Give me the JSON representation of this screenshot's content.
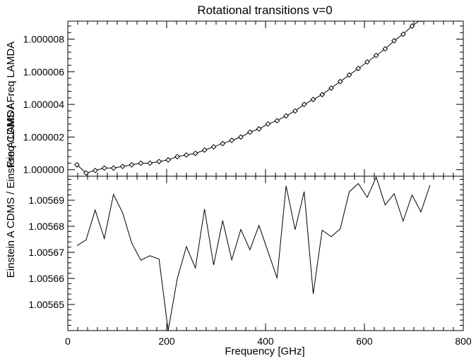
{
  "chart_data": {
    "title": "Rotational transitions v=0",
    "xlabel": "Frequency [GHz]",
    "ylabel_top": "Freq CDMS / Freq LAMDA",
    "ylabel_bottom": "Einstein A CDMS / Einstein A LAMDA",
    "xlim": [
      0,
      800
    ],
    "x_ticks": [
      0,
      200,
      400,
      600,
      800
    ],
    "x_tick_labels": [
      "0",
      "200",
      "400",
      "600",
      "800"
    ],
    "panels": [
      {
        "name": "top",
        "type": "line",
        "markers": "diamond",
        "ylim": [
          0.9999996,
          1.0000091
        ],
        "y_ticks": [
          1.0,
          1.000002,
          1.000004,
          1.000006,
          1.000008
        ],
        "y_tick_labels": [
          "1.000000",
          "1.000002",
          "1.000004",
          "1.000006",
          "1.000008"
        ],
        "series": [
          {
            "x": [
              18.5,
              37.0,
              55.5,
              73.9,
              92.4,
              110.8,
              129.3,
              147.7,
              166.2,
              184.6,
              203.0,
              221.4,
              239.8,
              258.2,
              276.6,
              295.0,
              313.3,
              331.7,
              350.0,
              368.4,
              386.7,
              405.0,
              423.3,
              441.6,
              459.9,
              478.1,
              496.4,
              514.6,
              532.9,
              551.1,
              569.3,
              587.5,
              605.7,
              623.8,
              642.0,
              660.1,
              678.3,
              696.4,
              714.5,
              732.6
            ],
            "values": [
              1.0000003,
              0.9999998,
              0.99999995,
              1.0000001,
              1.0000001,
              1.0000002,
              1.0000003,
              1.0000004,
              1.0000004,
              1.0000005,
              1.0000006,
              1.0000008,
              1.0000009,
              1.000001,
              1.0000012,
              1.0000014,
              1.0000016,
              1.0000018,
              1.000002,
              1.0000023,
              1.0000025,
              1.0000028,
              1.000003,
              1.0000033,
              1.0000036,
              1.000004,
              1.0000043,
              1.0000046,
              1.000005,
              1.0000054,
              1.0000058,
              1.0000062,
              1.0000066,
              1.000007,
              1.0000074,
              1.0000079,
              1.0000083,
              1.0000088,
              1.0000092,
              1.0000097
            ]
          }
        ]
      },
      {
        "name": "bottom",
        "type": "line",
        "ylim": [
          1.00564,
          1.0056992
        ],
        "y_ticks": [
          1.00565,
          1.00566,
          1.00567,
          1.00568,
          1.00569
        ],
        "y_tick_labels": [
          "1.00565",
          "1.00566",
          "1.00567",
          "1.00568",
          "1.00569"
        ],
        "series": [
          {
            "x": [
              18.5,
              37.0,
              55.5,
              73.9,
              92.4,
              110.8,
              129.3,
              147.7,
              166.2,
              184.6,
              203.0,
              221.4,
              239.8,
              258.2,
              276.6,
              295.0,
              313.3,
              331.7,
              350.0,
              368.4,
              386.7,
              405.0,
              423.3,
              441.6,
              459.9,
              478.1,
              496.4,
              514.6,
              532.9,
              551.1,
              569.3,
              587.5,
              605.7,
              623.8,
              642.0,
              660.1,
              678.3,
              696.4,
              714.5,
              732.6
            ],
            "values": [
              1.0056726,
              1.0056748,
              1.0056862,
              1.0056753,
              1.0056922,
              1.0056852,
              1.0056736,
              1.005667,
              1.0056687,
              1.0056674,
              1.00564,
              1.0056599,
              1.0056722,
              1.005664,
              1.0056866,
              1.0056651,
              1.0056822,
              1.0056671,
              1.0056788,
              1.005671,
              1.0056803,
              1.0056703,
              1.0056601,
              1.0056955,
              1.0056787,
              1.0056933,
              1.0056541,
              1.0056785,
              1.005676,
              1.005679,
              1.0056932,
              1.0056964,
              1.0056911,
              1.0056988,
              1.0056882,
              1.0056925,
              1.005682,
              1.005692,
              1.0056855,
              1.0056958
            ]
          }
        ]
      }
    ]
  }
}
